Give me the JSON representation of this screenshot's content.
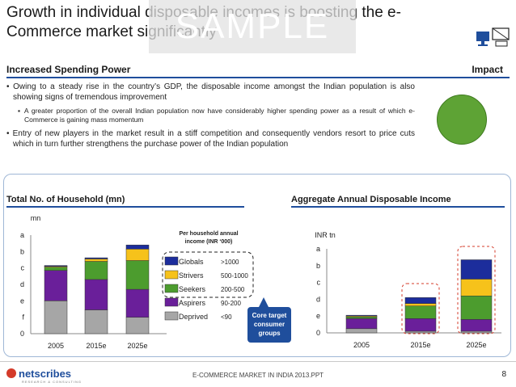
{
  "title": "Growth in individual disposable incomes is boosting the e-Commerce market significantly",
  "watermark": "SAMPLE",
  "section": {
    "left": "Increased Spending Power",
    "right": "Impact"
  },
  "bullets": {
    "b1": "• Owing to a steady rise in the country’s GDP, the disposable income amongst the Indian population is also showing signs of tremendous improvement",
    "b2": "▪ A greater proportion of the overall Indian population now have considerably higher spending power as a result of which e-Commerce is gaining mass momentum",
    "b3": "• Entry of new players in the market result in a stiff competition and consequently vendors resort to price cuts which in turn further strengthens the purchase power of the Indian population"
  },
  "colors": {
    "globals": "#1c2d9c",
    "strivers": "#f6c21b",
    "seekers": "#4c9c2e",
    "aspirers": "#6a1f9a",
    "deprived": "#a6a6a6",
    "accent": "#1f4e9c",
    "impact": "#5ea335"
  },
  "footer": {
    "text": "E-COMMERCE MARKET IN INDIA 2013.PPT",
    "page": "8",
    "logo": "netscribes",
    "logo_sub": "RESEARCH & CONSULTING"
  },
  "chart_data": [
    {
      "type": "bar",
      "stacked": true,
      "title": "Total No. of Household (mn)",
      "ylabel": "mn",
      "categories": [
        "2005",
        "2015e",
        "2025e"
      ],
      "yticks": [
        "0",
        "f",
        "e",
        "d",
        "c",
        "b",
        "a"
      ],
      "series": [
        {
          "name": "Deprived",
          "values": [
            2.0,
            1.45,
            1.0
          ]
        },
        {
          "name": "Aspirers",
          "values": [
            1.85,
            1.85,
            1.7
          ]
        },
        {
          "name": "Seekers",
          "values": [
            0.2,
            1.1,
            1.75
          ]
        },
        {
          "name": "Strivers",
          "values": [
            0.05,
            0.15,
            0.7
          ]
        },
        {
          "name": "Globals",
          "values": [
            0.05,
            0.07,
            0.25
          ]
        }
      ],
      "legend": {
        "title": "Per household annual income (INR ‘000)",
        "items": [
          {
            "name": "Globals",
            "range": ">1000"
          },
          {
            "name": "Strivers",
            "range": "500-1000"
          },
          {
            "name": "Seekers",
            "range": "200-500"
          },
          {
            "name": "Aspirers",
            "range": "90-200"
          },
          {
            "name": "Deprived",
            "range": "<90"
          }
        ]
      },
      "callout": "Core target consumer groups"
    },
    {
      "type": "bar",
      "stacked": true,
      "title": "Aggregate Annual Disposable Income",
      "ylabel": "INR tn",
      "categories": [
        "2005",
        "2015e",
        "2025e"
      ],
      "yticks": [
        "0",
        "e",
        "d",
        "c",
        "b",
        "a"
      ],
      "series": [
        {
          "name": "Deprived",
          "values": [
            0.25,
            0.1,
            0.1
          ]
        },
        {
          "name": "Aspirers",
          "values": [
            0.6,
            0.75,
            0.7
          ]
        },
        {
          "name": "Seekers",
          "values": [
            0.1,
            0.75,
            1.4
          ]
        },
        {
          "name": "Strivers",
          "values": [
            0.05,
            0.15,
            1.0
          ]
        },
        {
          "name": "Globals",
          "values": [
            0.05,
            0.35,
            1.15
          ]
        }
      ]
    }
  ]
}
